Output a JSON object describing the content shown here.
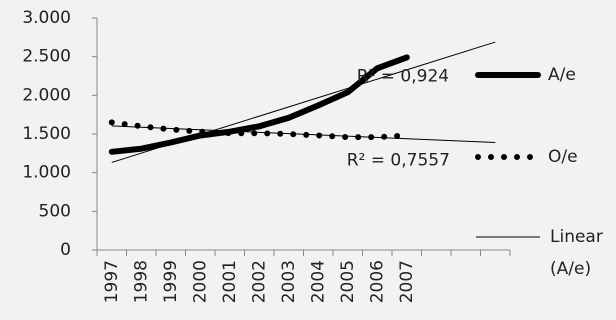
{
  "chart_data": {
    "type": "line",
    "categories": [
      "1997",
      "1998",
      "1999",
      "2000",
      "2001",
      "2002",
      "2003",
      "2004",
      "2005",
      "2006",
      "2007",
      null,
      null,
      null
    ],
    "series": [
      {
        "name": "A/e",
        "color": "#000000",
        "style": "solid",
        "values": [
          1270,
          1310,
          1390,
          1480,
          1530,
          1600,
          1710,
          1870,
          2040,
          2350,
          2490,
          null,
          null,
          null
        ],
        "trendline": "Linear (A/e)",
        "r2_label": "R² = 0,924"
      },
      {
        "name": "O/e",
        "color": "#000000",
        "style": "dotted",
        "values": [
          1650,
          1600,
          1560,
          1530,
          1510,
          1510,
          1500,
          1480,
          1460,
          1460,
          1480,
          null,
          null,
          null
        ],
        "r2_label": "R² = 0,7557"
      }
    ],
    "ylim": [
      0,
      3000
    ],
    "yticks": [
      {
        "value": 0,
        "label": "0"
      },
      {
        "value": 500,
        "label": "500"
      },
      {
        "value": 1000,
        "label": "1.000"
      },
      {
        "value": 1500,
        "label": "1.500"
      },
      {
        "value": 2000,
        "label": "2.000"
      },
      {
        "value": 2500,
        "label": "2.500"
      },
      {
        "value": 3000,
        "label": "3.000"
      }
    ],
    "grid": false,
    "legend": "right"
  }
}
